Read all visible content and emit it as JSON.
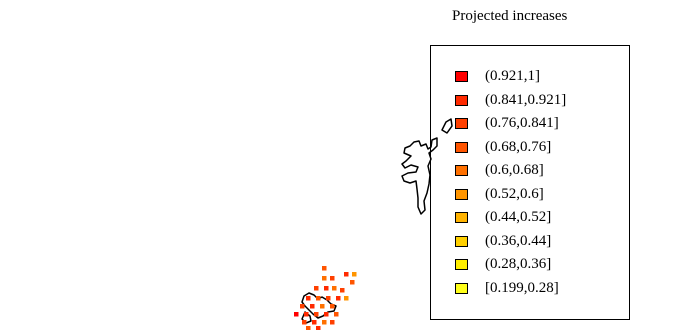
{
  "title": "Projected increases",
  "legend": {
    "items": [
      {
        "label": "(0.921,1]",
        "color": "#ff0000"
      },
      {
        "label": "(0.841,0.921]",
        "color": "#ff2a00"
      },
      {
        "label": "(0.76,0.841]",
        "color": "#ff4000"
      },
      {
        "label": "(0.68,0.76]",
        "color": "#ff5500"
      },
      {
        "label": "(0.6,0.68]",
        "color": "#ff7000"
      },
      {
        "label": "(0.52,0.6]",
        "color": "#ff9500"
      },
      {
        "label": "(0.44,0.52]",
        "color": "#ffb300"
      },
      {
        "label": "(0.36,0.44]",
        "color": "#ffd000"
      },
      {
        "label": "(0.28,0.36]",
        "color": "#ffee00"
      },
      {
        "label": "[0.199,0.28]",
        "color": "#ffff1a"
      }
    ]
  },
  "map": {
    "outline_color": "#000000",
    "region_fill": "none"
  }
}
